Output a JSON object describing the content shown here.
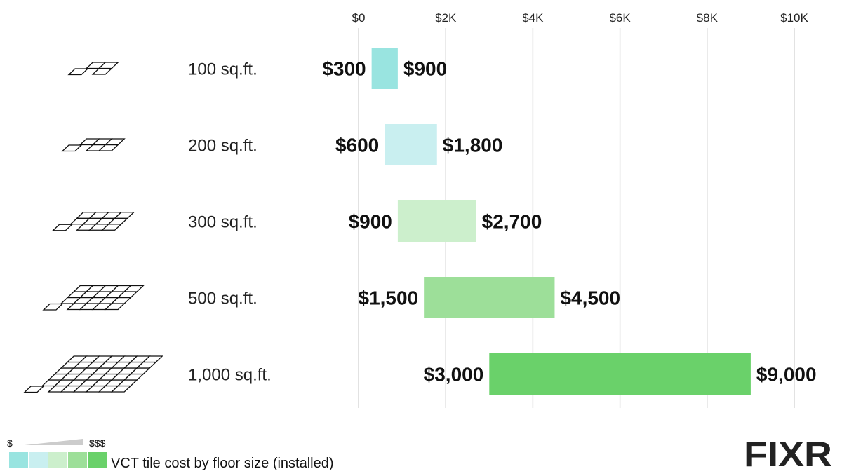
{
  "chart_data": {
    "type": "bar",
    "subtype": "floating-range-horizontal",
    "categories": [
      "100 sq.ft.",
      "200 sq.ft.",
      "300 sq.ft.",
      "500 sq.ft.",
      "1,000 sq.ft."
    ],
    "series": [
      {
        "values": [
          300,
          600,
          900,
          1500,
          3000
        ]
      },
      {
        "values": [
          900,
          1800,
          2700,
          4500,
          9000
        ]
      }
    ],
    "low_labels": [
      "$300",
      "$600",
      "$900",
      "$1,500",
      "$3,000"
    ],
    "high_labels": [
      "$900",
      "$1,800",
      "$2,700",
      "$4,500",
      "$9,000"
    ],
    "bar_colors": [
      "#99e4e0",
      "#c9eff0",
      "#ccefcc",
      "#9ddf99",
      "#6ad16a"
    ],
    "xlim": [
      0,
      10000
    ],
    "x_ticks": [
      0,
      2000,
      4000,
      6000,
      8000,
      10000
    ],
    "x_tick_labels": [
      "$0",
      "$2K",
      "$4K",
      "$6K",
      "$8K",
      "$10K"
    ],
    "grid": true,
    "tile_grids": [
      [
        2,
        2
      ],
      [
        3,
        2
      ],
      [
        4,
        3
      ],
      [
        5,
        4
      ],
      [
        7,
        6
      ]
    ],
    "title": "",
    "xlabel": "",
    "ylabel": ""
  },
  "legend": {
    "low_symbol": "$",
    "high_symbol": "$$$",
    "caption": "VCT tile cost by floor size (installed)",
    "swatch_colors": [
      "#99e4e0",
      "#c9eff0",
      "#ccefcc",
      "#9ddf99",
      "#6ad16a"
    ]
  },
  "brand": {
    "logo_text": "FIXR"
  }
}
